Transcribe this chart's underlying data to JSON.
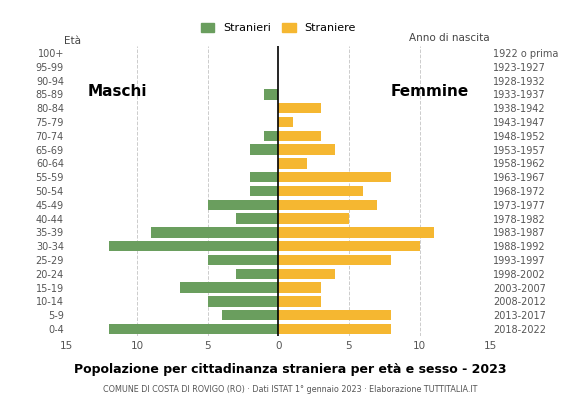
{
  "age_groups": [
    "0-4",
    "5-9",
    "10-14",
    "15-19",
    "20-24",
    "25-29",
    "30-34",
    "35-39",
    "40-44",
    "45-49",
    "50-54",
    "55-59",
    "60-64",
    "65-69",
    "70-74",
    "75-79",
    "80-84",
    "85-89",
    "90-94",
    "95-99",
    "100+"
  ],
  "birth_years": [
    "2018-2022",
    "2013-2017",
    "2008-2012",
    "2003-2007",
    "1998-2002",
    "1993-1997",
    "1988-1992",
    "1983-1987",
    "1978-1982",
    "1973-1977",
    "1968-1972",
    "1963-1967",
    "1958-1962",
    "1953-1957",
    "1948-1952",
    "1943-1947",
    "1938-1942",
    "1933-1937",
    "1928-1932",
    "1923-1927",
    "1922 o prima"
  ],
  "males": [
    12,
    4,
    5,
    7,
    3,
    5,
    12,
    9,
    3,
    5,
    2,
    2,
    0,
    2,
    1,
    0,
    0,
    1,
    0,
    0,
    0
  ],
  "females": [
    8,
    8,
    3,
    3,
    4,
    8,
    10,
    11,
    5,
    7,
    6,
    8,
    2,
    4,
    3,
    1,
    3,
    0,
    0,
    0,
    0
  ],
  "male_color": "#6a9e5e",
  "female_color": "#f5b731",
  "title": "Popolazione per cittadinanza straniera per età e sesso - 2023",
  "subtitle": "COMUNE DI COSTA DI ROVIGO (RO) · Dati ISTAT 1° gennaio 2023 · Elaborazione TUTTITALIA.IT",
  "xlabel_left": "Maschi",
  "xlabel_right": "Femmine",
  "xlim": 15,
  "legend_male": "Stranieri",
  "legend_female": "Straniere",
  "birth_year_label": "Anno di nascita",
  "grid_color": "#cccccc",
  "background_color": "#ffffff"
}
